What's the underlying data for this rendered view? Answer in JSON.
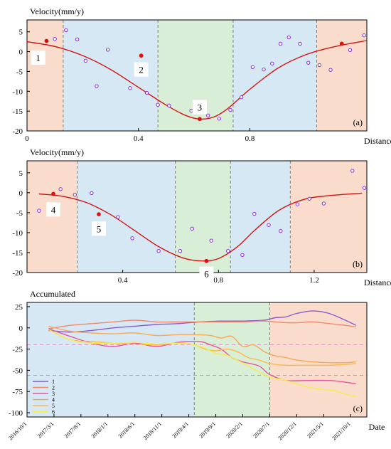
{
  "chart_data": [
    {
      "type": "scatter",
      "panel_label": "(a)",
      "ylabel": "Velocity(mm/y)",
      "xlabel": "Distance",
      "xlim": [
        0,
        1.22
      ],
      "ylim": [
        -20,
        8
      ],
      "xticks": [
        0,
        0.4,
        0.8
      ],
      "yticks": [
        5,
        0,
        -5,
        -10,
        -15,
        -20
      ],
      "zones": [
        {
          "x0": 0,
          "x1": 0.13,
          "color": "#f9dccb"
        },
        {
          "x0": 0.13,
          "x1": 0.47,
          "color": "#d6e8f3"
        },
        {
          "x0": 0.47,
          "x1": 0.74,
          "color": "#d8eed6"
        },
        {
          "x0": 0.74,
          "x1": 1.04,
          "color": "#d6e8f3"
        },
        {
          "x0": 1.04,
          "x1": 1.22,
          "color": "#f9dccb"
        }
      ],
      "points": [
        [
          0.1,
          3.2
        ],
        [
          0.14,
          5.4
        ],
        [
          0.18,
          3.1
        ],
        [
          0.21,
          -2.3
        ],
        [
          0.25,
          -8.7
        ],
        [
          0.29,
          0.5
        ],
        [
          0.37,
          -9.2
        ],
        [
          0.43,
          -10.4
        ],
        [
          0.47,
          -13.4
        ],
        [
          0.51,
          -13.6
        ],
        [
          0.59,
          -14.9
        ],
        [
          0.65,
          -16.1
        ],
        [
          0.69,
          -16.9
        ],
        [
          0.73,
          -14.7
        ],
        [
          0.77,
          -11.5
        ],
        [
          0.81,
          -3.9
        ],
        [
          0.85,
          -4.5
        ],
        [
          0.88,
          -3.0
        ],
        [
          0.91,
          2.0
        ],
        [
          0.94,
          3.6
        ],
        [
          0.98,
          2.0
        ],
        [
          1.01,
          -2.8
        ],
        [
          1.05,
          -3.4
        ],
        [
          1.09,
          -4.6
        ],
        [
          1.16,
          0.4
        ],
        [
          1.21,
          4.1
        ]
      ],
      "fit_curve": [
        [
          0.0,
          2.5
        ],
        [
          0.1,
          1.3
        ],
        [
          0.2,
          -1.0
        ],
        [
          0.3,
          -4.5
        ],
        [
          0.4,
          -9.0
        ],
        [
          0.5,
          -13.5
        ],
        [
          0.57,
          -16.1
        ],
        [
          0.62,
          -17.0
        ],
        [
          0.67,
          -16.5
        ],
        [
          0.72,
          -14.4
        ],
        [
          0.8,
          -9.5
        ],
        [
          0.9,
          -4.2
        ],
        [
          1.0,
          -0.8
        ],
        [
          1.1,
          1.2
        ],
        [
          1.22,
          2.8
        ]
      ],
      "marked": [
        {
          "label": "1",
          "x": 0.07,
          "y": 2.7,
          "box": [
            0.04,
            -1.5
          ]
        },
        {
          "label": "2",
          "x": 0.41,
          "y": -1.0,
          "box": [
            0.41,
            -4.5
          ]
        },
        {
          "label": "3",
          "x": 0.62,
          "y": -17.0,
          "box": [
            0.62,
            -14.0
          ]
        },
        {
          "label": "",
          "x": 1.13,
          "y": 2.0,
          "box": null
        }
      ]
    },
    {
      "type": "scatter",
      "panel_label": "(b)",
      "ylabel": "Velocity(mm/y)",
      "xlabel": "Distance",
      "xlim": [
        0,
        1.42
      ],
      "ylim": [
        -20,
        8
      ],
      "xticks": [
        0.4,
        0.8,
        1.2
      ],
      "yticks": [
        5,
        0,
        -5,
        -10,
        -15,
        -20
      ],
      "zones": [
        {
          "x0": 0,
          "x1": 0.21,
          "color": "#f9dccb"
        },
        {
          "x0": 0.21,
          "x1": 0.62,
          "color": "#d6e8f3"
        },
        {
          "x0": 0.62,
          "x1": 0.85,
          "color": "#d8eed6"
        },
        {
          "x0": 0.85,
          "x1": 1.1,
          "color": "#d6e8f3"
        },
        {
          "x0": 1.1,
          "x1": 1.42,
          "color": "#f9dccb"
        }
      ],
      "points": [
        [
          0.05,
          -4.5
        ],
        [
          0.14,
          0.9
        ],
        [
          0.2,
          -0.5
        ],
        [
          0.27,
          -0.1
        ],
        [
          0.38,
          -6.1
        ],
        [
          0.44,
          -11.4
        ],
        [
          0.55,
          -14.6
        ],
        [
          0.64,
          -14.6
        ],
        [
          0.69,
          -9.0
        ],
        [
          0.77,
          -12.0
        ],
        [
          0.84,
          -14.6
        ],
        [
          0.9,
          -15.6
        ],
        [
          0.95,
          -5.3
        ],
        [
          1.01,
          -8.1
        ],
        [
          1.06,
          -9.6
        ],
        [
          1.13,
          -2.9
        ],
        [
          1.18,
          -1.5
        ],
        [
          1.24,
          -2.7
        ],
        [
          1.36,
          5.5
        ],
        [
          1.41,
          1.2
        ]
      ],
      "fit_curve": [
        [
          0.05,
          -0.3
        ],
        [
          0.15,
          -0.9
        ],
        [
          0.25,
          -2.5
        ],
        [
          0.35,
          -5.5
        ],
        [
          0.45,
          -9.5
        ],
        [
          0.55,
          -13.5
        ],
        [
          0.65,
          -16.3
        ],
        [
          0.73,
          -17.1
        ],
        [
          0.8,
          -16.5
        ],
        [
          0.88,
          -13.5
        ],
        [
          0.95,
          -9.5
        ],
        [
          1.05,
          -4.5
        ],
        [
          1.15,
          -1.8
        ],
        [
          1.25,
          -0.8
        ],
        [
          1.4,
          -0.1
        ]
      ],
      "marked": [
        {
          "label": "4",
          "x": 0.11,
          "y": -0.3,
          "box": [
            0.11,
            -4.2
          ]
        },
        {
          "label": "5",
          "x": 0.3,
          "y": -5.4,
          "box": [
            0.3,
            -9.0
          ]
        },
        {
          "label": "6",
          "x": 0.75,
          "y": -17.1,
          "box": [
            0.75,
            -20.3
          ]
        }
      ]
    },
    {
      "type": "line",
      "panel_label": "(c)",
      "ylabel": "Accumulated",
      "xlabel": "Date",
      "ylim": [
        -105,
        30
      ],
      "yticks": [
        25,
        0,
        -25,
        -50,
        -75,
        -100
      ],
      "xlim": [
        0,
        63
      ],
      "x_tick_labels": [
        "2016/10/1",
        "2017/3/1",
        "2017/8/1",
        "2018/1/1",
        "2018/6/1",
        "2018/11/1",
        "2019/4/1",
        "2019/9/1",
        "2020/2/1",
        "2020/7/1",
        "2020/12/1",
        "2021/5/1",
        "2021/10/1"
      ],
      "x_tick_positions": [
        0,
        5,
        10,
        15,
        20,
        25,
        30,
        35,
        40,
        45,
        50,
        55,
        60
      ],
      "zones": [
        {
          "x0": 0,
          "x1": 31,
          "color": "#d6e8f3"
        },
        {
          "x0": 31,
          "x1": 45,
          "color": "#d8eed6"
        },
        {
          "x0": 45,
          "x1": 63,
          "color": "#f9dccb"
        }
      ],
      "hlines": [
        -20,
        -56
      ],
      "series": [
        {
          "name": "1",
          "color": "#8a5ad0",
          "points": [
            [
              4,
              -3
            ],
            [
              8,
              -5
            ],
            [
              12,
              -3
            ],
            [
              16,
              0
            ],
            [
              20,
              2
            ],
            [
              24,
              4
            ],
            [
              28,
              5
            ],
            [
              32,
              7
            ],
            [
              36,
              8
            ],
            [
              40,
              8
            ],
            [
              44,
              9
            ],
            [
              46,
              12
            ],
            [
              48,
              13
            ],
            [
              50,
              17
            ],
            [
              53,
              20
            ],
            [
              56,
              17
            ],
            [
              59,
              9
            ],
            [
              61,
              3
            ]
          ]
        },
        {
          "name": "2",
          "color": "#f08a70",
          "points": [
            [
              4,
              -1
            ],
            [
              8,
              3
            ],
            [
              12,
              5
            ],
            [
              16,
              7
            ],
            [
              20,
              9
            ],
            [
              24,
              7
            ],
            [
              28,
              7
            ],
            [
              32,
              7
            ],
            [
              36,
              7
            ],
            [
              40,
              7
            ],
            [
              44,
              8
            ],
            [
              46,
              7
            ],
            [
              48,
              6
            ],
            [
              50,
              6
            ],
            [
              53,
              7
            ],
            [
              56,
              5
            ],
            [
              59,
              3
            ],
            [
              61,
              1
            ]
          ]
        },
        {
          "name": "3",
          "color": "#e855a0",
          "points": [
            [
              4,
              -1
            ],
            [
              8,
              -10
            ],
            [
              12,
              -18
            ],
            [
              16,
              -22
            ],
            [
              20,
              -18
            ],
            [
              24,
              -22
            ],
            [
              28,
              -17
            ],
            [
              32,
              -16
            ],
            [
              34,
              -20
            ],
            [
              36,
              -25
            ],
            [
              38,
              -35
            ],
            [
              40,
              -40
            ],
            [
              43,
              -45
            ],
            [
              45,
              -55
            ],
            [
              48,
              -62
            ],
            [
              52,
              -62
            ],
            [
              56,
              -62
            ],
            [
              59,
              -64
            ],
            [
              61,
              -66
            ]
          ]
        },
        {
          "name": "4",
          "color": "#f7a85a",
          "points": [
            [
              4,
              2
            ],
            [
              8,
              -4
            ],
            [
              12,
              -6
            ],
            [
              16,
              -7
            ],
            [
              20,
              -6
            ],
            [
              24,
              -9
            ],
            [
              28,
              -8
            ],
            [
              31,
              -8
            ],
            [
              34,
              -9
            ],
            [
              36,
              -12
            ],
            [
              38,
              -10
            ],
            [
              40,
              -22
            ],
            [
              42,
              -20
            ],
            [
              44,
              -28
            ],
            [
              46,
              -33
            ],
            [
              48,
              -35
            ],
            [
              50,
              -38
            ],
            [
              53,
              -40
            ],
            [
              56,
              -41
            ],
            [
              59,
              -41
            ],
            [
              61,
              -40
            ]
          ]
        },
        {
          "name": "5",
          "color": "#fcb84a",
          "points": [
            [
              4,
              -2
            ],
            [
              8,
              -14
            ],
            [
              12,
              -16
            ],
            [
              16,
              -18
            ],
            [
              20,
              -19
            ],
            [
              24,
              -20
            ],
            [
              28,
              -18
            ],
            [
              31,
              -20
            ],
            [
              33,
              -25
            ],
            [
              35,
              -27
            ],
            [
              37,
              -25
            ],
            [
              39,
              -28
            ],
            [
              41,
              -35
            ],
            [
              43,
              -38
            ],
            [
              45,
              -42
            ],
            [
              48,
              -44
            ],
            [
              52,
              -44
            ],
            [
              56,
              -44
            ],
            [
              59,
              -43
            ],
            [
              61,
              -42
            ]
          ]
        },
        {
          "name": "6",
          "color": "#f5ee4a",
          "points": [
            [
              4,
              -2
            ],
            [
              8,
              -14
            ],
            [
              12,
              -18
            ],
            [
              16,
              -18
            ],
            [
              20,
              -17
            ],
            [
              24,
              -19
            ],
            [
              28,
              -18
            ],
            [
              31,
              -20
            ],
            [
              33,
              -24
            ],
            [
              35,
              -30
            ],
            [
              37,
              -32
            ],
            [
              39,
              -38
            ],
            [
              41,
              -45
            ],
            [
              43,
              -52
            ],
            [
              45,
              -58
            ],
            [
              48,
              -62
            ],
            [
              51,
              -68
            ],
            [
              54,
              -72
            ],
            [
              57,
              -74
            ],
            [
              59,
              -78
            ],
            [
              61,
              -81
            ]
          ]
        }
      ]
    }
  ]
}
